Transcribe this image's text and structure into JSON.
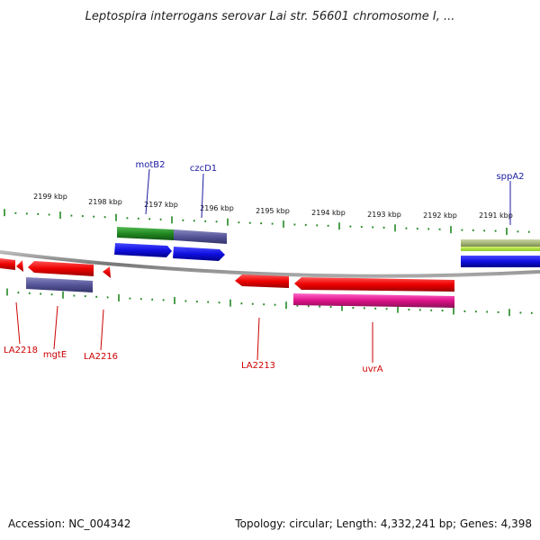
{
  "title": "Leptospira interrogans serovar Lai str. 56601 chromosome I, ...",
  "ticks": [
    "2199 kbp",
    "2198 kbp",
    "2197 kbp",
    "2196 kbp",
    "2195 kbp",
    "2194 kbp",
    "2193 kbp",
    "2192 kbp",
    "2191 kbp"
  ],
  "genes_top": [
    {
      "name": "motB2",
      "color": "#1a1aa0"
    },
    {
      "name": "czcD1",
      "color": "#1a1aa0"
    },
    {
      "name": "sppA2",
      "color": "#1a1aa0"
    }
  ],
  "genes_bottom": [
    {
      "name": "LA2218",
      "color": "#cc0000"
    },
    {
      "name": "mgtE",
      "color": "#cc0000"
    },
    {
      "name": "LA2216",
      "color": "#cc0000"
    },
    {
      "name": "LA2213",
      "color": "#cc0000"
    },
    {
      "name": "uvrA",
      "color": "#cc0000"
    }
  ],
  "colors": {
    "tick": "#228822",
    "backbone": "#888888",
    "red": "#e00000",
    "blue": "#1010e0",
    "purple": "#555599",
    "green": "#228822",
    "pink": "#dd1188",
    "olive": "#a8b878"
  },
  "footer": {
    "accession": "Accession: NC_004342",
    "topology": "Topology: circular; Length: 4,332,241 bp; Genes: 4,398"
  }
}
